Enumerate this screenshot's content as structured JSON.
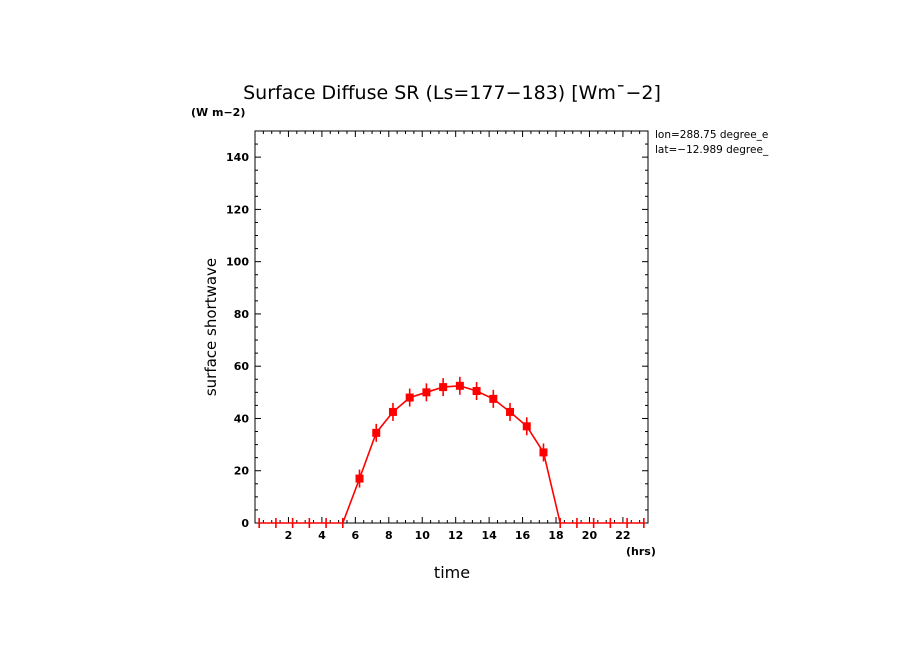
{
  "chart_data": {
    "type": "line",
    "title": "Surface Diffuse SR (Ls=177−183) [Wm¯−2]",
    "y_units": "(W m−2)",
    "x_units": "(hrs)",
    "xlabel": "time",
    "ylabel": "surface shortwave",
    "xlim": [
      0,
      23.5
    ],
    "ylim": [
      0,
      150
    ],
    "x_ticks": [
      2,
      4,
      6,
      8,
      10,
      12,
      14,
      16,
      18,
      20,
      22
    ],
    "y_ticks": [
      0,
      20,
      40,
      60,
      80,
      100,
      120,
      140
    ],
    "annotations": [
      "lon=288.75 degree_e",
      "lat=−12.989 degree_"
    ],
    "color": "#ff0000",
    "series": [
      {
        "x": [
          0.25,
          1.25,
          2.25,
          3.25,
          4.25,
          5.25,
          6.25,
          7.25,
          8.25,
          9.25,
          10.25,
          11.25,
          12.25,
          13.25,
          14.25,
          15.25,
          16.25,
          17.25,
          18.25,
          19.25,
          20.25,
          21.25,
          22.25,
          23.25
        ],
        "y": [
          0,
          0,
          0,
          0,
          0,
          0,
          17,
          34.5,
          42.5,
          48,
          50,
          52,
          52.5,
          50.5,
          47.5,
          42.5,
          37,
          27,
          0,
          0,
          0,
          0,
          0,
          0
        ]
      }
    ]
  }
}
